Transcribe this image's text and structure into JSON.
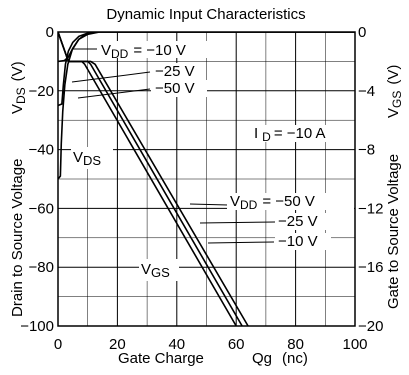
{
  "chart_data": {
    "type": "line",
    "title": "Dynamic Input Characteristics",
    "xlabel": "Gate Charge",
    "xlabel_symbol": "Qg",
    "xlabel_unit": "(nc)",
    "ylabel_left": "Drain to Source Voltage",
    "ylabel_left_symbol": {
      "main": "V",
      "sub": "DS",
      "unit": "(V)"
    },
    "ylabel_right": "Gate to Source Voltage",
    "ylabel_right_symbol": {
      "main": "V",
      "sub": "GS",
      "unit": "(V)"
    },
    "xlim": [
      0,
      100
    ],
    "ylim_left": [
      -100,
      0
    ],
    "ylim_right": [
      -20,
      0
    ],
    "x_ticks": [
      "0",
      "20",
      "40",
      "60",
      "80",
      "100"
    ],
    "y_left_ticks": [
      "0",
      "−20",
      "−40",
      "−60",
      "−80",
      "−100"
    ],
    "y_right_ticks": [
      "0",
      "−4",
      "−8",
      "−12",
      "−16",
      "−20"
    ],
    "grid": true,
    "annotations": {
      "vdd_top": {
        "main": "V",
        "sub": "DD",
        "value": "= −10 V"
      },
      "vdd_top_2": "−25 V",
      "vdd_top_3": "−50 V",
      "id": {
        "main": "I",
        "sub": "D",
        "value": "= −10 A"
      },
      "vds": {
        "main": "V",
        "sub": "DS"
      },
      "vgs": {
        "main": "V",
        "sub": "GS"
      },
      "vdd_bottom": {
        "main": "V",
        "sub": "DD",
        "value": "= −50 V"
      },
      "vdd_bottom_2": "−25 V",
      "vdd_bottom_3": "−10 V"
    },
    "series": [
      {
        "group": "VDS",
        "vdd": "−10 V",
        "points": [
          [
            0,
            -10
          ],
          [
            2.2,
            -9.7
          ],
          [
            3.5,
            -8.5
          ],
          [
            5,
            -5.5
          ],
          [
            7,
            -2.5
          ],
          [
            9,
            -1
          ],
          [
            11,
            0
          ],
          [
            30,
            0
          ],
          [
            100,
            0
          ]
        ]
      },
      {
        "group": "VDS",
        "vdd": "−25 V",
        "points": [
          [
            0,
            -25
          ],
          [
            1.3,
            -24.5
          ],
          [
            1.8,
            -18
          ],
          [
            2.5,
            -11
          ],
          [
            3.5,
            -6.5
          ],
          [
            5,
            -3.5
          ],
          [
            7,
            -1.5
          ],
          [
            10,
            -0.4
          ],
          [
            13,
            0
          ],
          [
            100,
            0
          ]
        ]
      },
      {
        "group": "VDS",
        "vdd": "−50 V",
        "points": [
          [
            0,
            -50
          ],
          [
            0.8,
            -49
          ],
          [
            1.1,
            -38
          ],
          [
            1.6,
            -27
          ],
          [
            2.3,
            -18
          ],
          [
            3.3,
            -11
          ],
          [
            4.8,
            -6
          ],
          [
            7,
            -2.5
          ],
          [
            10,
            -0.8
          ],
          [
            14,
            0
          ],
          [
            100,
            0
          ]
        ]
      },
      {
        "group": "VGS",
        "vdd": "−10 V",
        "points": [
          [
            0,
            0
          ],
          [
            3.5,
            -2
          ],
          [
            11,
            -2
          ],
          [
            12.5,
            -2.2
          ],
          [
            64,
            -20
          ]
        ]
      },
      {
        "group": "VGS",
        "vdd": "−25 V",
        "points": [
          [
            0,
            0
          ],
          [
            3.5,
            -2
          ],
          [
            10,
            -2
          ],
          [
            11,
            -2.2
          ],
          [
            62,
            -20
          ]
        ]
      },
      {
        "group": "VGS",
        "vdd": "−50 V",
        "points": [
          [
            0,
            0
          ],
          [
            3.5,
            -2
          ],
          [
            8,
            -2
          ],
          [
            9,
            -2.2
          ],
          [
            60,
            -20
          ]
        ]
      }
    ]
  }
}
